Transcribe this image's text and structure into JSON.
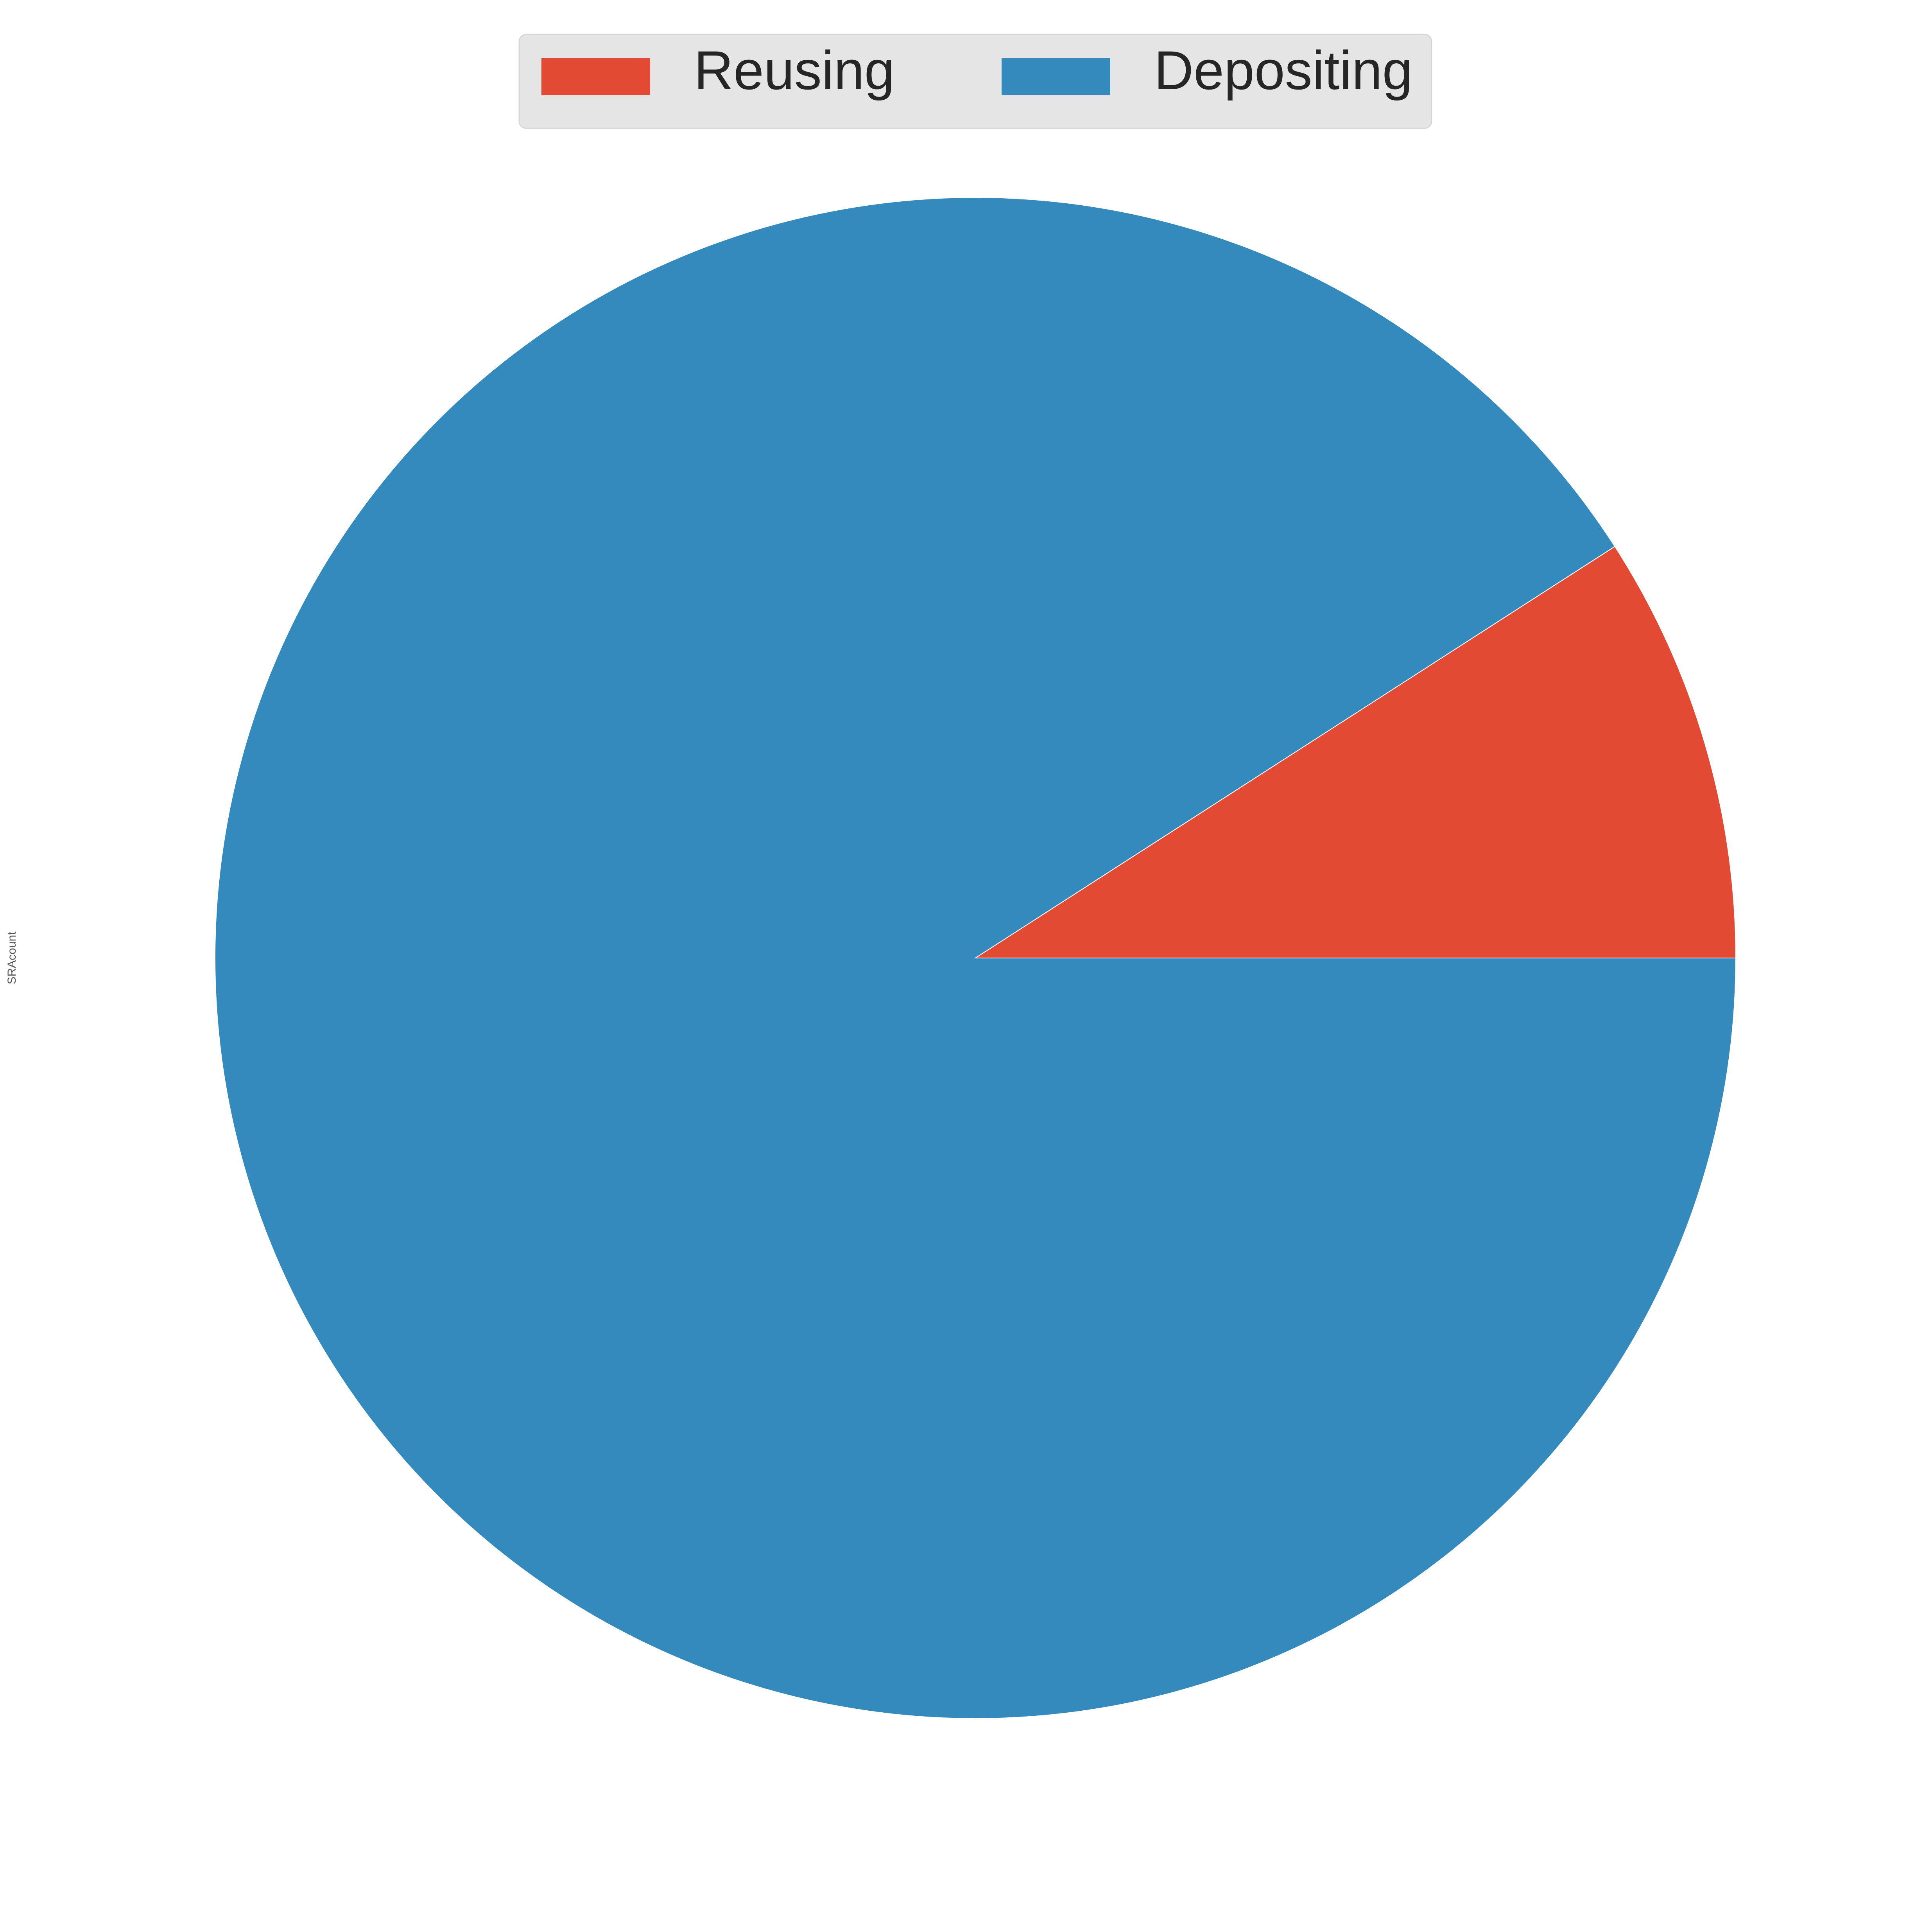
{
  "chart_data": {
    "type": "pie",
    "title": "",
    "ylabel": "SRAcount",
    "start_angle_deg": 0,
    "direction": "counterclockwise",
    "legend": {
      "placement": "top-center",
      "columns": 2
    },
    "slices": [
      {
        "label": "Reusing",
        "value": 9.1,
        "color": "#E24A33"
      },
      {
        "label": "Depositing",
        "value": 90.9,
        "color": "#348ABD"
      }
    ]
  }
}
